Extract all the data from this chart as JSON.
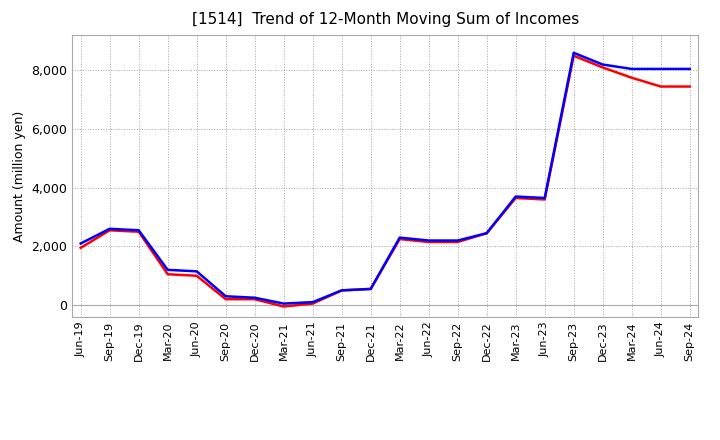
{
  "title": "[1514]  Trend of 12-Month Moving Sum of Incomes",
  "ylabel": "Amount (million yen)",
  "x_labels": [
    "Jun-19",
    "Sep-19",
    "Dec-19",
    "Mar-20",
    "Jun-20",
    "Sep-20",
    "Dec-20",
    "Mar-21",
    "Jun-21",
    "Sep-21",
    "Dec-21",
    "Mar-22",
    "Jun-22",
    "Sep-22",
    "Dec-22",
    "Mar-23",
    "Jun-23",
    "Sep-23",
    "Dec-23",
    "Mar-24",
    "Jun-24",
    "Sep-24"
  ],
  "ordinary_income": [
    2100,
    2600,
    2550,
    1200,
    1150,
    300,
    250,
    50,
    100,
    500,
    550,
    2300,
    2200,
    2200,
    2450,
    3700,
    3650,
    8600,
    8200,
    8050,
    8050,
    8050
  ],
  "net_income": [
    1950,
    2550,
    2500,
    1050,
    1000,
    200,
    200,
    -50,
    50,
    500,
    550,
    2250,
    2150,
    2150,
    2450,
    3650,
    3600,
    8500,
    8100,
    7750,
    7450,
    7450
  ],
  "ordinary_income_color": "#0000FF",
  "net_income_color": "#FF0000",
  "line_width": 1.8,
  "background_color": "#FFFFFF",
  "plot_bg_color": "#FFFFFF",
  "grid_color": "#999999",
  "ylim": [
    -400,
    9200
  ],
  "yticks": [
    0,
    2000,
    4000,
    6000,
    8000
  ],
  "title_fontsize": 11,
  "axis_fontsize": 9,
  "legend_fontsize": 9,
  "ylabel_fontsize": 9
}
